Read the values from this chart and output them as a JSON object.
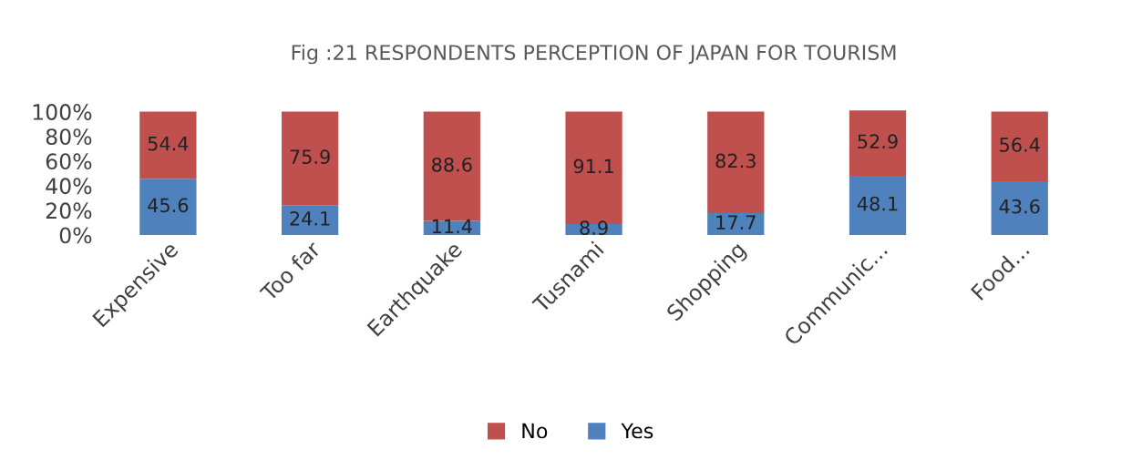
{
  "chart_data": {
    "type": "bar",
    "title": "Fig :21 RESPONDENTS PERCEPTION OF JAPAN FOR TOURISM",
    "categories": [
      "Expensive",
      "Too far",
      "Earthquake",
      "Tusnami",
      "Shopping",
      "Communic...",
      "Food..."
    ],
    "series": [
      {
        "name": "Yes",
        "color": "#4f81bd",
        "values": [
          45.6,
          24.1,
          11.4,
          8.9,
          17.7,
          48.1,
          43.6
        ]
      },
      {
        "name": "No",
        "color": "#c0504d",
        "values": [
          54.4,
          75.9,
          88.6,
          91.1,
          82.3,
          52.9,
          56.4
        ]
      }
    ],
    "stacked": true,
    "data_labels": true,
    "ylim": [
      0,
      101
    ],
    "yticks": [
      {
        "value": 0,
        "label": "0%"
      },
      {
        "value": 20,
        "label": "20%"
      },
      {
        "value": 40,
        "label": "40%"
      },
      {
        "value": 60,
        "label": "60%"
      },
      {
        "value": 80,
        "label": "80%"
      },
      {
        "value": 100,
        "label": "100%"
      }
    ],
    "grid": false,
    "legend": "bottom"
  }
}
